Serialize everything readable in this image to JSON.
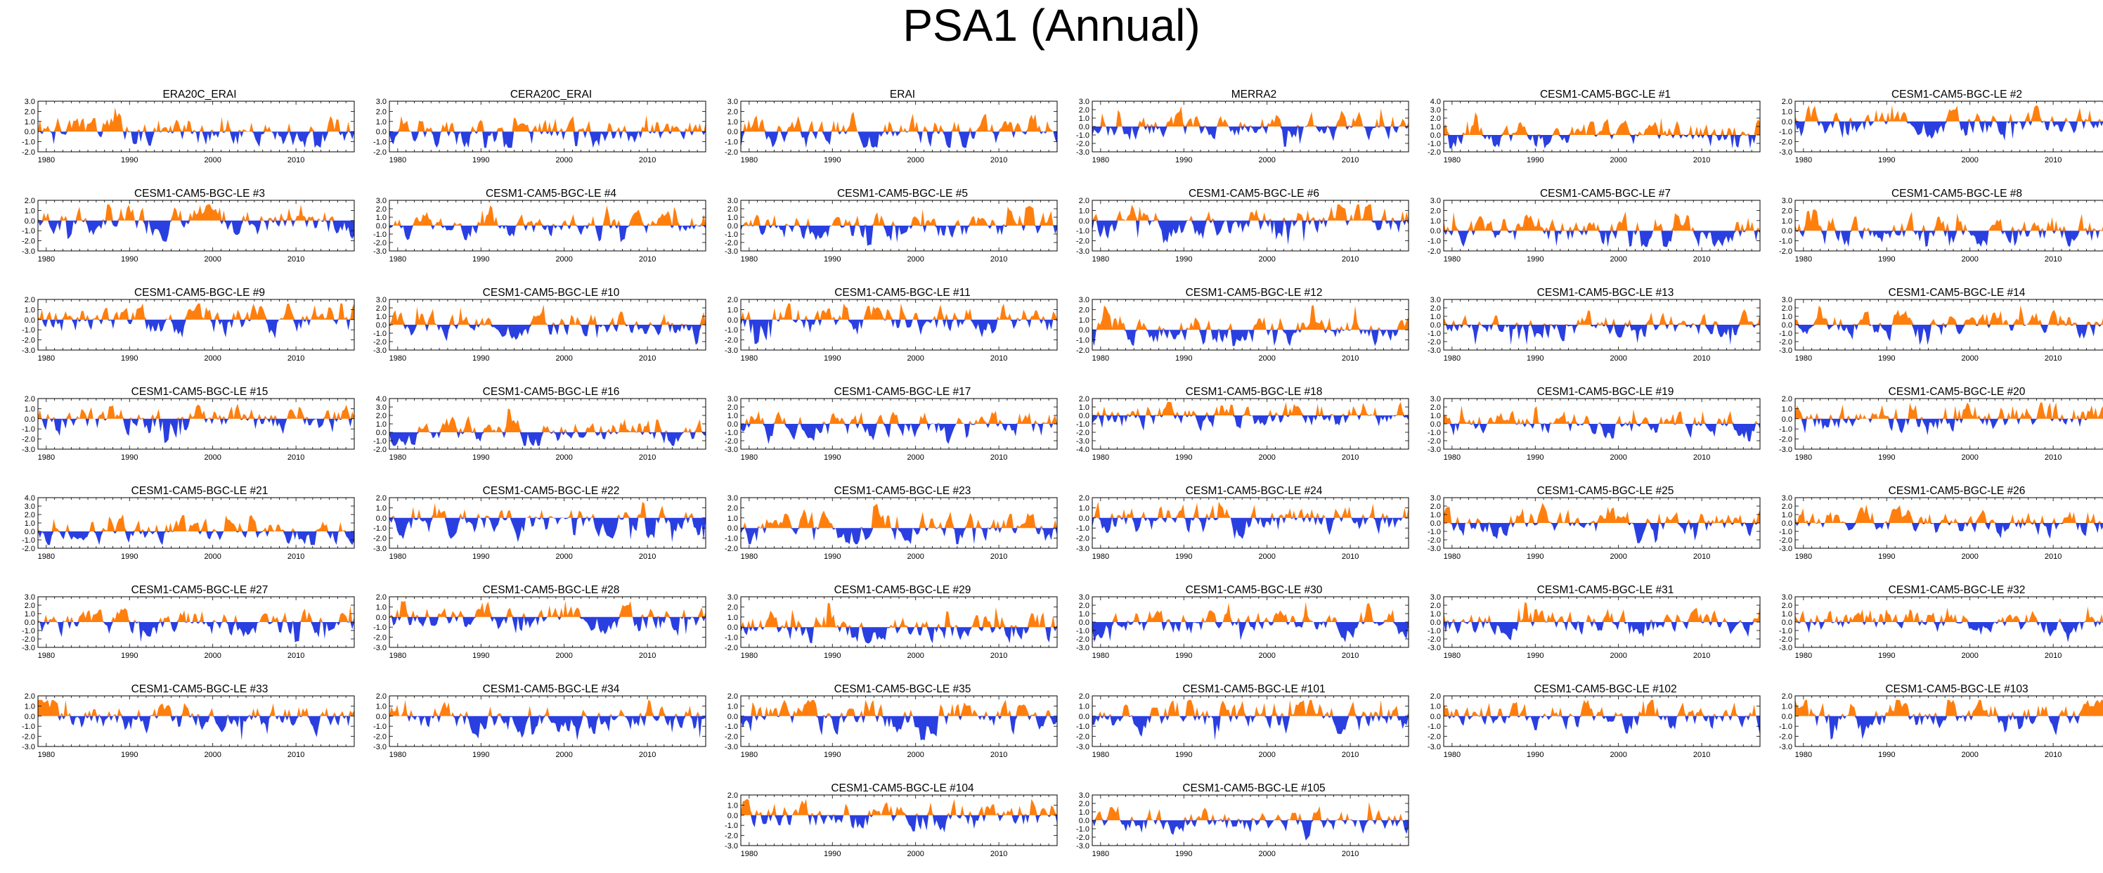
{
  "title": "PSA1 (Annual)",
  "colors": {
    "positive": "#ff7f0e",
    "negative": "#2a3fe0",
    "axis": "#000000"
  },
  "chart_data": [
    {
      "type": "area",
      "title": "ERA20C_ERAI",
      "yticks": [
        "3.0",
        "2.0",
        "1.0",
        "0.0",
        "-1.0",
        "-2.0"
      ],
      "ylim": [
        -2,
        3
      ],
      "xticks": [
        "1980",
        "1990",
        "2000",
        "2010"
      ],
      "xlim": [
        1979,
        2017
      ],
      "seed": 1
    },
    {
      "type": "area",
      "title": "CERA20C_ERAI",
      "yticks": [
        "3.0",
        "2.0",
        "1.0",
        "0.0",
        "-1.0",
        "-2.0"
      ],
      "ylim": [
        -2,
        3
      ],
      "xticks": [
        "1980",
        "1990",
        "2000",
        "2010"
      ],
      "xlim": [
        1979,
        2017
      ],
      "seed": 2
    },
    {
      "type": "area",
      "title": "ERAI",
      "yticks": [
        "3.0",
        "2.0",
        "1.0",
        "0.0",
        "-1.0",
        "-2.0"
      ],
      "ylim": [
        -2,
        3
      ],
      "xticks": [
        "1980",
        "1990",
        "2000",
        "2010"
      ],
      "xlim": [
        1979,
        2017
      ],
      "seed": 3
    },
    {
      "type": "area",
      "title": "MERRA2",
      "yticks": [
        "3.0",
        "2.0",
        "1.0",
        "0.0",
        "-1.0",
        "-2.0",
        "-3.0"
      ],
      "ylim": [
        -3,
        3
      ],
      "xticks": [
        "1980",
        "1990",
        "2000",
        "2010"
      ],
      "xlim": [
        1979,
        2017
      ],
      "seed": 4
    },
    {
      "type": "area",
      "title": "CESM1-CAM5-BGC-LE #1",
      "yticks": [
        "4.0",
        "3.0",
        "2.0",
        "1.0",
        "0.0",
        "-1.0",
        "-2.0"
      ],
      "ylim": [
        -2,
        4
      ],
      "xticks": [
        "1980",
        "1990",
        "2000",
        "2010"
      ],
      "xlim": [
        1979,
        2017
      ],
      "seed": 5
    },
    {
      "type": "area",
      "title": "CESM1-CAM5-BGC-LE #2",
      "yticks": [
        "2.0",
        "1.0",
        "0.0",
        "-1.0",
        "-2.0",
        "-3.0"
      ],
      "ylim": [
        -3,
        2
      ],
      "xticks": [
        "1980",
        "1990",
        "2000",
        "2010"
      ],
      "xlim": [
        1979,
        2017
      ],
      "seed": 6
    },
    {
      "type": "area",
      "title": "CESM1-CAM5-BGC-LE #3",
      "yticks": [
        "2.0",
        "1.0",
        "0.0",
        "-1.0",
        "-2.0",
        "-3.0"
      ],
      "ylim": [
        -3,
        2
      ],
      "xticks": [
        "1980",
        "1990",
        "2000",
        "2010"
      ],
      "xlim": [
        1979,
        2017
      ],
      "seed": 7
    },
    {
      "type": "area",
      "title": "CESM1-CAM5-BGC-LE #4",
      "yticks": [
        "3.0",
        "2.0",
        "1.0",
        "0.0",
        "-1.0",
        "-2.0",
        "-3.0"
      ],
      "ylim": [
        -3,
        3
      ],
      "xticks": [
        "1980",
        "1990",
        "2000",
        "2010"
      ],
      "xlim": [
        1979,
        2017
      ],
      "seed": 8
    },
    {
      "type": "area",
      "title": "CESM1-CAM5-BGC-LE #5",
      "yticks": [
        "3.0",
        "2.0",
        "1.0",
        "0.0",
        "-1.0",
        "-2.0",
        "-3.0"
      ],
      "ylim": [
        -3,
        3
      ],
      "xticks": [
        "1980",
        "1990",
        "2000",
        "2010"
      ],
      "xlim": [
        1979,
        2017
      ],
      "seed": 9
    },
    {
      "type": "area",
      "title": "CESM1-CAM5-BGC-LE #6",
      "yticks": [
        "2.0",
        "1.0",
        "0.0",
        "-1.0",
        "-2.0",
        "-3.0"
      ],
      "ylim": [
        -3,
        2
      ],
      "xticks": [
        "1980",
        "1990",
        "2000",
        "2010"
      ],
      "xlim": [
        1979,
        2017
      ],
      "seed": 10
    },
    {
      "type": "area",
      "title": "CESM1-CAM5-BGC-LE #7",
      "yticks": [
        "3.0",
        "2.0",
        "1.0",
        "0.0",
        "-1.0",
        "-2.0"
      ],
      "ylim": [
        -2,
        3
      ],
      "xticks": [
        "1980",
        "1990",
        "2000",
        "2010"
      ],
      "xlim": [
        1979,
        2017
      ],
      "seed": 11
    },
    {
      "type": "area",
      "title": "CESM1-CAM5-BGC-LE #8",
      "yticks": [
        "3.0",
        "2.0",
        "1.0",
        "0.0",
        "-1.0",
        "-2.0"
      ],
      "ylim": [
        -2,
        3
      ],
      "xticks": [
        "1980",
        "1990",
        "2000",
        "2010"
      ],
      "xlim": [
        1979,
        2017
      ],
      "seed": 12
    },
    {
      "type": "area",
      "title": "CESM1-CAM5-BGC-LE #9",
      "yticks": [
        "2.0",
        "1.0",
        "0.0",
        "-1.0",
        "-2.0",
        "-3.0"
      ],
      "ylim": [
        -3,
        2
      ],
      "xticks": [
        "1980",
        "1990",
        "2000",
        "2010"
      ],
      "xlim": [
        1979,
        2017
      ],
      "seed": 13
    },
    {
      "type": "area",
      "title": "CESM1-CAM5-BGC-LE #10",
      "yticks": [
        "3.0",
        "2.0",
        "1.0",
        "0.0",
        "-1.0",
        "-2.0",
        "-3.0"
      ],
      "ylim": [
        -3,
        3
      ],
      "xticks": [
        "1980",
        "1990",
        "2000",
        "2010"
      ],
      "xlim": [
        1979,
        2017
      ],
      "seed": 14
    },
    {
      "type": "area",
      "title": "CESM1-CAM5-BGC-LE #11",
      "yticks": [
        "2.0",
        "1.0",
        "0.0",
        "-1.0",
        "-2.0",
        "-3.0"
      ],
      "ylim": [
        -3,
        2
      ],
      "xticks": [
        "1980",
        "1990",
        "2000",
        "2010"
      ],
      "xlim": [
        1979,
        2017
      ],
      "seed": 15
    },
    {
      "type": "area",
      "title": "CESM1-CAM5-BGC-LE #12",
      "yticks": [
        "3.0",
        "2.0",
        "1.0",
        "0.0",
        "-1.0",
        "-2.0"
      ],
      "ylim": [
        -2,
        3
      ],
      "xticks": [
        "1980",
        "1990",
        "2000",
        "2010"
      ],
      "xlim": [
        1979,
        2017
      ],
      "seed": 16
    },
    {
      "type": "area",
      "title": "CESM1-CAM5-BGC-LE #13",
      "yticks": [
        "3.0",
        "2.0",
        "1.0",
        "0.0",
        "-1.0",
        "-2.0",
        "-3.0"
      ],
      "ylim": [
        -3,
        3
      ],
      "xticks": [
        "1980",
        "1990",
        "2000",
        "2010"
      ],
      "xlim": [
        1979,
        2017
      ],
      "seed": 17
    },
    {
      "type": "area",
      "title": "CESM1-CAM5-BGC-LE #14",
      "yticks": [
        "3.0",
        "2.0",
        "1.0",
        "0.0",
        "-1.0",
        "-2.0",
        "-3.0"
      ],
      "ylim": [
        -3,
        3
      ],
      "xticks": [
        "1980",
        "1990",
        "2000",
        "2010"
      ],
      "xlim": [
        1979,
        2017
      ],
      "seed": 18
    },
    {
      "type": "area",
      "title": "CESM1-CAM5-BGC-LE #15",
      "yticks": [
        "2.0",
        "1.0",
        "0.0",
        "-1.0",
        "-2.0",
        "-3.0"
      ],
      "ylim": [
        -3,
        2
      ],
      "xticks": [
        "1980",
        "1990",
        "2000",
        "2010"
      ],
      "xlim": [
        1979,
        2017
      ],
      "seed": 19
    },
    {
      "type": "area",
      "title": "CESM1-CAM5-BGC-LE #16",
      "yticks": [
        "4.0",
        "3.0",
        "2.0",
        "1.0",
        "0.0",
        "-1.0",
        "-2.0"
      ],
      "ylim": [
        -2,
        4
      ],
      "xticks": [
        "1980",
        "1990",
        "2000",
        "2010"
      ],
      "xlim": [
        1979,
        2017
      ],
      "seed": 20
    },
    {
      "type": "area",
      "title": "CESM1-CAM5-BGC-LE #17",
      "yticks": [
        "3.0",
        "2.0",
        "1.0",
        "0.0",
        "-1.0",
        "-2.0",
        "-3.0"
      ],
      "ylim": [
        -3,
        3
      ],
      "xticks": [
        "1980",
        "1990",
        "2000",
        "2010"
      ],
      "xlim": [
        1979,
        2017
      ],
      "seed": 21
    },
    {
      "type": "area",
      "title": "CESM1-CAM5-BGC-LE #18",
      "yticks": [
        "2.0",
        "1.0",
        "0.0",
        "-1.0",
        "-2.0",
        "-3.0",
        "-4.0"
      ],
      "ylim": [
        -4,
        2
      ],
      "xticks": [
        "1980",
        "1990",
        "2000",
        "2010"
      ],
      "xlim": [
        1979,
        2017
      ],
      "seed": 22
    },
    {
      "type": "area",
      "title": "CESM1-CAM5-BGC-LE #19",
      "yticks": [
        "3.0",
        "2.0",
        "1.0",
        "0.0",
        "-1.0",
        "-2.0",
        "-3.0"
      ],
      "ylim": [
        -3,
        3
      ],
      "xticks": [
        "1980",
        "1990",
        "2000",
        "2010"
      ],
      "xlim": [
        1979,
        2017
      ],
      "seed": 23
    },
    {
      "type": "area",
      "title": "CESM1-CAM5-BGC-LE #20",
      "yticks": [
        "2.0",
        "1.0",
        "0.0",
        "-1.0",
        "-2.0",
        "-3.0"
      ],
      "ylim": [
        -3,
        2
      ],
      "xticks": [
        "1980",
        "1990",
        "2000",
        "2010"
      ],
      "xlim": [
        1979,
        2017
      ],
      "seed": 24
    },
    {
      "type": "area",
      "title": "CESM1-CAM5-BGC-LE #21",
      "yticks": [
        "4.0",
        "3.0",
        "2.0",
        "1.0",
        "0.0",
        "-1.0",
        "-2.0"
      ],
      "ylim": [
        -2,
        4
      ],
      "xticks": [
        "1980",
        "1990",
        "2000",
        "2010"
      ],
      "xlim": [
        1979,
        2017
      ],
      "seed": 25
    },
    {
      "type": "area",
      "title": "CESM1-CAM5-BGC-LE #22",
      "yticks": [
        "2.0",
        "1.0",
        "0.0",
        "-1.0",
        "-2.0",
        "-3.0"
      ],
      "ylim": [
        -3,
        2
      ],
      "xticks": [
        "1980",
        "1990",
        "2000",
        "2010"
      ],
      "xlim": [
        1979,
        2017
      ],
      "seed": 26
    },
    {
      "type": "area",
      "title": "CESM1-CAM5-BGC-LE #23",
      "yticks": [
        "3.0",
        "2.0",
        "1.0",
        "0.0",
        "-1.0",
        "-2.0"
      ],
      "ylim": [
        -2,
        3
      ],
      "xticks": [
        "1980",
        "1990",
        "2000",
        "2010"
      ],
      "xlim": [
        1979,
        2017
      ],
      "seed": 27
    },
    {
      "type": "area",
      "title": "CESM1-CAM5-BGC-LE #24",
      "yticks": [
        "2.0",
        "1.0",
        "0.0",
        "-1.0",
        "-2.0",
        "-3.0"
      ],
      "ylim": [
        -3,
        2
      ],
      "xticks": [
        "1980",
        "1990",
        "2000",
        "2010"
      ],
      "xlim": [
        1979,
        2017
      ],
      "seed": 28
    },
    {
      "type": "area",
      "title": "CESM1-CAM5-BGC-LE #25",
      "yticks": [
        "3.0",
        "2.0",
        "1.0",
        "0.0",
        "-1.0",
        "-2.0",
        "-3.0"
      ],
      "ylim": [
        -3,
        3
      ],
      "xticks": [
        "1980",
        "1990",
        "2000",
        "2010"
      ],
      "xlim": [
        1979,
        2017
      ],
      "seed": 29
    },
    {
      "type": "area",
      "title": "CESM1-CAM5-BGC-LE #26",
      "yticks": [
        "3.0",
        "2.0",
        "1.0",
        "0.0",
        "-1.0",
        "-2.0",
        "-3.0"
      ],
      "ylim": [
        -3,
        3
      ],
      "xticks": [
        "1980",
        "1990",
        "2000",
        "2010"
      ],
      "xlim": [
        1979,
        2017
      ],
      "seed": 30
    },
    {
      "type": "area",
      "title": "CESM1-CAM5-BGC-LE #27",
      "yticks": [
        "3.0",
        "2.0",
        "1.0",
        "0.0",
        "-1.0",
        "-2.0",
        "-3.0"
      ],
      "ylim": [
        -3,
        3
      ],
      "xticks": [
        "1980",
        "1990",
        "2000",
        "2010"
      ],
      "xlim": [
        1979,
        2017
      ],
      "seed": 31
    },
    {
      "type": "area",
      "title": "CESM1-CAM5-BGC-LE #28",
      "yticks": [
        "2.0",
        "1.0",
        "0.0",
        "-1.0",
        "-2.0",
        "-3.0"
      ],
      "ylim": [
        -3,
        2
      ],
      "xticks": [
        "1980",
        "1990",
        "2000",
        "2010"
      ],
      "xlim": [
        1979,
        2017
      ],
      "seed": 32
    },
    {
      "type": "area",
      "title": "CESM1-CAM5-BGC-LE #29",
      "yticks": [
        "3.0",
        "2.0",
        "1.0",
        "0.0",
        "-1.0",
        "-2.0"
      ],
      "ylim": [
        -2,
        3
      ],
      "xticks": [
        "1980",
        "1990",
        "2000",
        "2010"
      ],
      "xlim": [
        1979,
        2017
      ],
      "seed": 33
    },
    {
      "type": "area",
      "title": "CESM1-CAM5-BGC-LE #30",
      "yticks": [
        "3.0",
        "2.0",
        "1.0",
        "0.0",
        "-1.0",
        "-2.0",
        "-3.0"
      ],
      "ylim": [
        -3,
        3
      ],
      "xticks": [
        "1980",
        "1990",
        "2000",
        "2010"
      ],
      "xlim": [
        1979,
        2017
      ],
      "seed": 34
    },
    {
      "type": "area",
      "title": "CESM1-CAM5-BGC-LE #31",
      "yticks": [
        "3.0",
        "2.0",
        "1.0",
        "0.0",
        "-1.0",
        "-2.0",
        "-3.0"
      ],
      "ylim": [
        -3,
        3
      ],
      "xticks": [
        "1980",
        "1990",
        "2000",
        "2010"
      ],
      "xlim": [
        1979,
        2017
      ],
      "seed": 35
    },
    {
      "type": "area",
      "title": "CESM1-CAM5-BGC-LE #32",
      "yticks": [
        "3.0",
        "2.0",
        "1.0",
        "0.0",
        "-1.0",
        "-2.0",
        "-3.0"
      ],
      "ylim": [
        -3,
        3
      ],
      "xticks": [
        "1980",
        "1990",
        "2000",
        "2010"
      ],
      "xlim": [
        1979,
        2017
      ],
      "seed": 36
    },
    {
      "type": "area",
      "title": "CESM1-CAM5-BGC-LE #33",
      "yticks": [
        "2.0",
        "1.0",
        "0.0",
        "-1.0",
        "-2.0",
        "-3.0"
      ],
      "ylim": [
        -3,
        2
      ],
      "xticks": [
        "1980",
        "1990",
        "2000",
        "2010"
      ],
      "xlim": [
        1979,
        2017
      ],
      "seed": 37
    },
    {
      "type": "area",
      "title": "CESM1-CAM5-BGC-LE #34",
      "yticks": [
        "2.0",
        "1.0",
        "0.0",
        "-1.0",
        "-2.0",
        "-3.0"
      ],
      "ylim": [
        -3,
        2
      ],
      "xticks": [
        "1980",
        "1990",
        "2000",
        "2010"
      ],
      "xlim": [
        1979,
        2017
      ],
      "seed": 38
    },
    {
      "type": "area",
      "title": "CESM1-CAM5-BGC-LE #35",
      "yticks": [
        "2.0",
        "1.0",
        "0.0",
        "-1.0",
        "-2.0",
        "-3.0"
      ],
      "ylim": [
        -3,
        2
      ],
      "xticks": [
        "1980",
        "1990",
        "2000",
        "2010"
      ],
      "xlim": [
        1979,
        2017
      ],
      "seed": 39
    },
    {
      "type": "area",
      "title": "CESM1-CAM5-BGC-LE #101",
      "yticks": [
        "2.0",
        "1.0",
        "0.0",
        "-1.0",
        "-2.0",
        "-3.0"
      ],
      "ylim": [
        -3,
        2
      ],
      "xticks": [
        "1980",
        "1990",
        "2000",
        "2010"
      ],
      "xlim": [
        1979,
        2017
      ],
      "seed": 40
    },
    {
      "type": "area",
      "title": "CESM1-CAM5-BGC-LE #102",
      "yticks": [
        "2.0",
        "1.0",
        "0.0",
        "-1.0",
        "-2.0",
        "-3.0"
      ],
      "ylim": [
        -3,
        2
      ],
      "xticks": [
        "1980",
        "1990",
        "2000",
        "2010"
      ],
      "xlim": [
        1979,
        2017
      ],
      "seed": 41
    },
    {
      "type": "area",
      "title": "CESM1-CAM5-BGC-LE #103",
      "yticks": [
        "2.0",
        "1.0",
        "0.0",
        "-1.0",
        "-2.0",
        "-3.0"
      ],
      "ylim": [
        -3,
        2
      ],
      "xticks": [
        "1980",
        "1990",
        "2000",
        "2010"
      ],
      "xlim": [
        1979,
        2017
      ],
      "seed": 42
    },
    {
      "type": "area",
      "title": "CESM1-CAM5-BGC-LE #104",
      "yticks": [
        "2.0",
        "1.0",
        "0.0",
        "-1.0",
        "-2.0",
        "-3.0"
      ],
      "ylim": [
        -3,
        2
      ],
      "xticks": [
        "1980",
        "1990",
        "2000",
        "2010"
      ],
      "xlim": [
        1979,
        2017
      ],
      "seed": 43
    },
    {
      "type": "area",
      "title": "CESM1-CAM5-BGC-LE #105",
      "yticks": [
        "3.0",
        "2.0",
        "1.0",
        "0.0",
        "-1.0",
        "-2.0",
        "-3.0"
      ],
      "ylim": [
        -3,
        3
      ],
      "xticks": [
        "1980",
        "1990",
        "2000",
        "2010"
      ],
      "xlim": [
        1979,
        2017
      ],
      "seed": 44
    }
  ]
}
